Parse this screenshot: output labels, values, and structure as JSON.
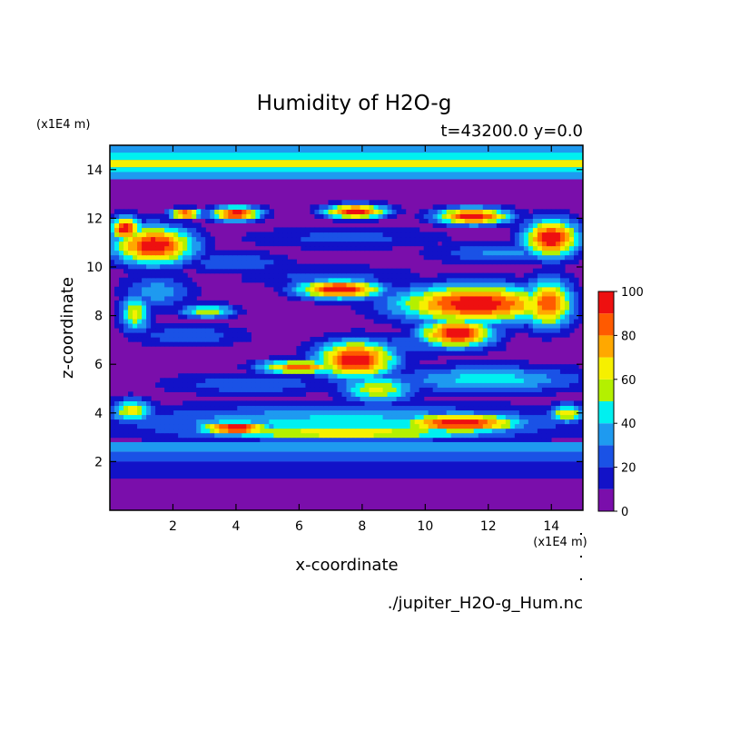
{
  "chart_data": {
    "type": "heatmap",
    "title": "Humidity of H2O-g",
    "subtitle": "t=43200.0 y=0.0",
    "xlabel": "x-coordinate",
    "ylabel": "z-coordinate",
    "x_unit": "(x1E4 m)",
    "y_unit": "(x1E4 m)",
    "footer": "./jupiter_H2O-g_Hum.nc",
    "xlim": [
      0,
      15
    ],
    "ylim": [
      0,
      15
    ],
    "x_ticks": [
      2,
      4,
      6,
      8,
      10,
      12,
      14
    ],
    "y_ticks": [
      2,
      4,
      6,
      8,
      10,
      12,
      14
    ],
    "colorbar": {
      "range": [
        0,
        100
      ],
      "ticks": [
        0,
        20,
        40,
        60,
        80,
        100
      ],
      "levels": [
        0,
        10,
        20,
        30,
        40,
        50,
        60,
        70,
        80,
        90,
        100
      ],
      "colors": [
        "#7a0eab",
        "#1212c8",
        "#1a52e6",
        "#1e9af0",
        "#00f0f0",
        "#b4f000",
        "#f6f000",
        "#ffa800",
        "#ff5a00",
        "#ee1010",
        "#ffafaf"
      ]
    },
    "horizontal_bands": [
      {
        "z": [
          0.0,
          1.3
        ],
        "level": 0
      },
      {
        "z": [
          1.3,
          2.0
        ],
        "level": 1
      },
      {
        "z": [
          2.0,
          2.4
        ],
        "level": 2
      },
      {
        "z": [
          2.4,
          2.8
        ],
        "level": 3
      },
      {
        "z": [
          13.6,
          13.9
        ],
        "level": 3
      },
      {
        "z": [
          13.9,
          14.1
        ],
        "level": 4
      },
      {
        "z": [
          14.1,
          14.4
        ],
        "level": 6
      },
      {
        "z": [
          14.4,
          14.7
        ],
        "level": 4
      },
      {
        "z": [
          14.7,
          15.0
        ],
        "level": 3
      }
    ],
    "field_blobs": [
      {
        "x": 1.5,
        "z": 9.0,
        "rx": 1.2,
        "rz": 0.8,
        "v": 35
      },
      {
        "x": 4.0,
        "z": 10.2,
        "rx": 1.8,
        "rz": 0.45,
        "v": 30
      },
      {
        "x": 7.0,
        "z": 9.6,
        "rx": 3.0,
        "rz": 0.5,
        "v": 25
      },
      {
        "x": 12.5,
        "z": 10.6,
        "rx": 2.5,
        "rz": 0.5,
        "v": 32
      },
      {
        "x": 7.5,
        "z": 11.2,
        "rx": 3.5,
        "rz": 0.5,
        "v": 24
      },
      {
        "x": 2.5,
        "z": 7.2,
        "rx": 2.0,
        "rz": 0.5,
        "v": 28
      },
      {
        "x": 10.0,
        "z": 6.8,
        "rx": 2.5,
        "rz": 0.5,
        "v": 30
      },
      {
        "x": 4.5,
        "z": 5.2,
        "rx": 3.0,
        "rz": 0.5,
        "v": 28
      },
      {
        "x": 12.0,
        "z": 5.4,
        "rx": 3.2,
        "rz": 0.6,
        "v": 45
      },
      {
        "x": 7.5,
        "z": 3.6,
        "rx": 7.5,
        "rz": 0.8,
        "v": 45
      },
      {
        "x": 0.8,
        "z": 8.1,
        "rx": 0.5,
        "rz": 0.8,
        "v": 62
      },
      {
        "x": 3.1,
        "z": 8.2,
        "rx": 0.9,
        "rz": 0.3,
        "v": 60
      },
      {
        "x": 0.7,
        "z": 4.1,
        "rx": 0.7,
        "rz": 0.5,
        "v": 65
      },
      {
        "x": 14.5,
        "z": 4.0,
        "rx": 0.6,
        "rz": 0.4,
        "v": 65
      },
      {
        "x": 1.4,
        "z": 10.9,
        "rx": 1.3,
        "rz": 0.8,
        "v": 100
      },
      {
        "x": 0.5,
        "z": 11.6,
        "rx": 0.5,
        "rz": 0.5,
        "v": 100
      },
      {
        "x": 2.4,
        "z": 12.2,
        "rx": 0.5,
        "rz": 0.2,
        "v": 100
      },
      {
        "x": 4.0,
        "z": 12.2,
        "rx": 0.8,
        "rz": 0.3,
        "v": 100
      },
      {
        "x": 7.8,
        "z": 12.3,
        "rx": 1.0,
        "rz": 0.3,
        "v": 100
      },
      {
        "x": 11.5,
        "z": 12.1,
        "rx": 1.2,
        "rz": 0.35,
        "v": 100
      },
      {
        "x": 14.0,
        "z": 11.2,
        "rx": 0.9,
        "rz": 0.8,
        "v": 100
      },
      {
        "x": 7.3,
        "z": 9.1,
        "rx": 1.4,
        "rz": 0.4,
        "v": 100
      },
      {
        "x": 11.6,
        "z": 8.5,
        "rx": 2.6,
        "rz": 0.8,
        "v": 100
      },
      {
        "x": 13.9,
        "z": 8.5,
        "rx": 0.8,
        "rz": 1.0,
        "v": 90
      },
      {
        "x": 7.8,
        "z": 6.2,
        "rx": 1.3,
        "rz": 0.8,
        "v": 100
      },
      {
        "x": 6.0,
        "z": 5.9,
        "rx": 1.3,
        "rz": 0.3,
        "v": 85
      },
      {
        "x": 11.0,
        "z": 7.3,
        "rx": 1.2,
        "rz": 0.6,
        "v": 100
      },
      {
        "x": 4.0,
        "z": 3.4,
        "rx": 1.2,
        "rz": 0.3,
        "v": 100
      },
      {
        "x": 11.1,
        "z": 3.6,
        "rx": 2.0,
        "rz": 0.4,
        "v": 100
      },
      {
        "x": 7.5,
        "z": 3.2,
        "rx": 5.0,
        "rz": 0.3,
        "v": 70
      },
      {
        "x": 8.5,
        "z": 5.0,
        "rx": 1.2,
        "rz": 0.6,
        "v": 62
      }
    ]
  }
}
